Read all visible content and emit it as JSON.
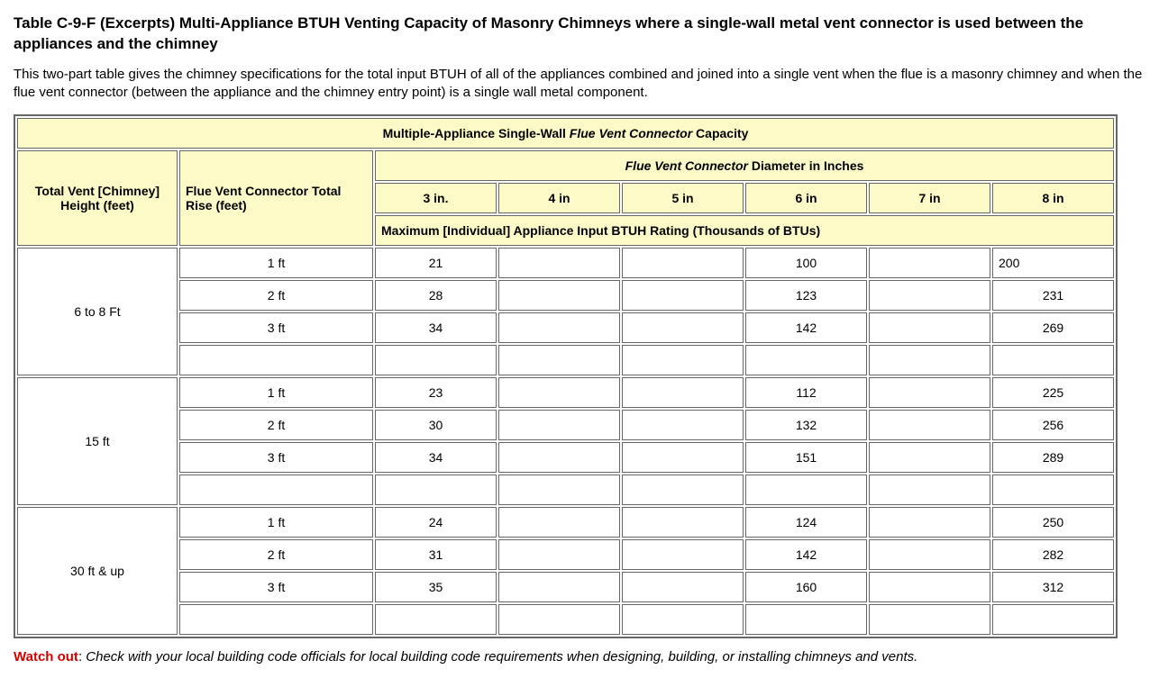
{
  "title": "Table C-9-F (Excerpts) Multi-Appliance BTUH Venting Capacity of Masonry Chimneys where a single-wall metal vent connector is used between the appliances and the chimney",
  "intro": "This two-part table gives the chimney specifications for the total input BTUH of all of the appliances combined and joined into a single vent when the flue is a masonry chimney and when the flue vent connector (between the appliance and the chimney entry point) is a single wall metal component.",
  "table": {
    "caption_prefix": "Multiple-Appliance Single-Wall ",
    "caption_em": "Flue Vent Connector",
    "caption_suffix": " Capacity",
    "col1": "Total Vent [Chimney] Height (feet)",
    "col2": "Flue Vent Connector Total Rise (feet)",
    "diam_header_em": "Flue Vent Connector",
    "diam_header_rest": " Diameter in Inches",
    "diam_cols": [
      "3 in.",
      "4 in",
      "5 in",
      "6 in",
      "7 in",
      "8 in"
    ],
    "subhead": "Maximum [Individual] Appliance Input BTUH Rating (Thousands of BTUs)",
    "groups": [
      {
        "height": "6 to 8 Ft",
        "rows": [
          {
            "rise": "1 ft",
            "v": [
              "21",
              "",
              "",
              "100",
              "",
              "200"
            ]
          },
          {
            "rise": "2 ft",
            "v": [
              "28",
              "",
              "",
              "123",
              "",
              "231"
            ]
          },
          {
            "rise": "3 ft",
            "v": [
              "34",
              "",
              "",
              "142",
              "",
              "269"
            ]
          },
          {
            "rise": "",
            "v": [
              "",
              "",
              "",
              "",
              "",
              ""
            ]
          }
        ]
      },
      {
        "height": "15 ft",
        "rows": [
          {
            "rise": "1 ft",
            "v": [
              "23",
              "",
              "",
              "112",
              "",
              "225"
            ]
          },
          {
            "rise": "2 ft",
            "v": [
              "30",
              "",
              "",
              "132",
              "",
              "256"
            ]
          },
          {
            "rise": "3 ft",
            "v": [
              "34",
              "",
              "",
              "151",
              "",
              "289"
            ]
          },
          {
            "rise": "",
            "v": [
              "",
              "",
              "",
              "",
              "",
              ""
            ]
          }
        ]
      },
      {
        "height": "30 ft & up",
        "rows": [
          {
            "rise": "1 ft",
            "v": [
              "24",
              "",
              "",
              "124",
              "",
              "250"
            ]
          },
          {
            "rise": "2 ft",
            "v": [
              "31",
              "",
              "",
              "142",
              "",
              "282"
            ]
          },
          {
            "rise": "3 ft",
            "v": [
              "35",
              "",
              "",
              "160",
              "",
              "312"
            ]
          },
          {
            "rise": "",
            "v": [
              "",
              "",
              "",
              "",
              "",
              ""
            ]
          }
        ]
      }
    ],
    "first_row_align": {
      "c8_left": true
    }
  },
  "warn_label": "Watch out",
  "warn_sep": ": ",
  "warn_text": "Check with your local building code officials for local building code requirements when designing, building, or installing chimneys and vents.",
  "colors": {
    "header_bg": "#fcfac6",
    "border": "#666666",
    "warn_red": "#d40000"
  }
}
